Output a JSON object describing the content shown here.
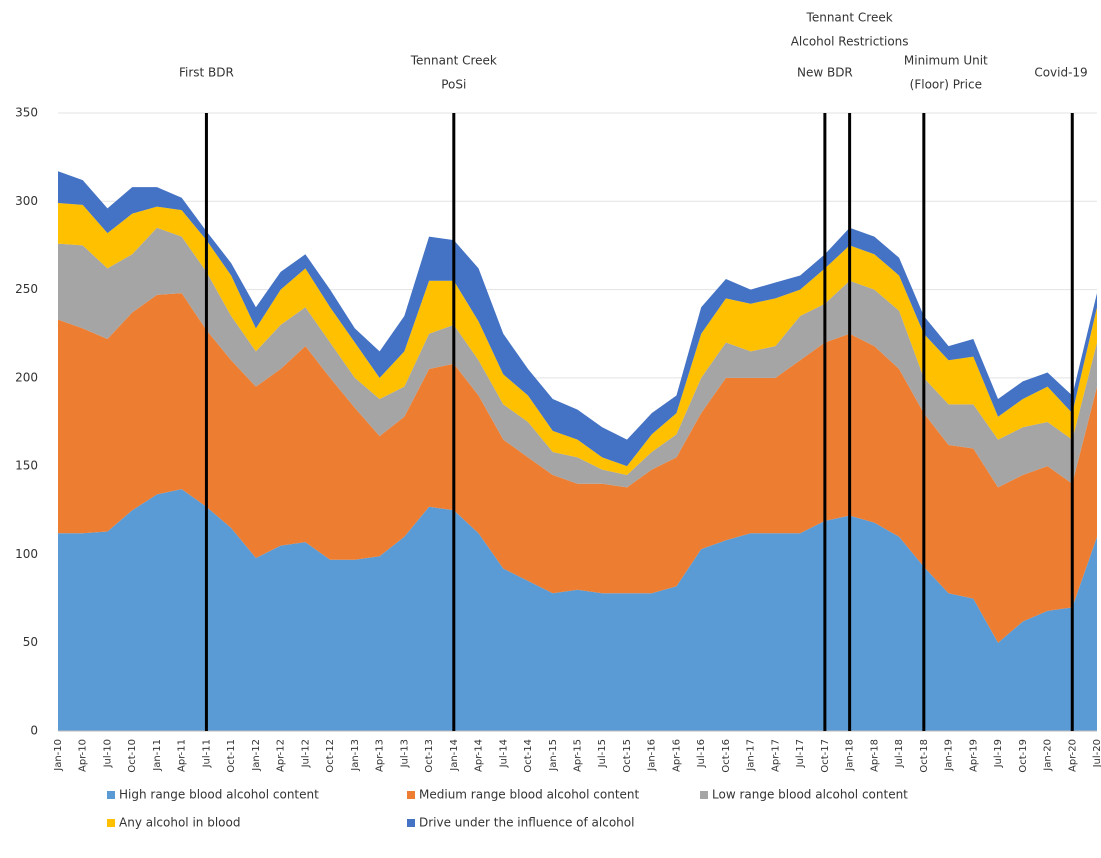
{
  "chart_data": {
    "type": "stacked-area",
    "categories": [
      "Jan-10",
      "Apr-10",
      "Jul-10",
      "Oct-10",
      "Jan-11",
      "Apr-11",
      "Jul-11",
      "Oct-11",
      "Jan-12",
      "Apr-12",
      "Jul-12",
      "Oct-12",
      "Jan-13",
      "Apr-13",
      "Jul-13",
      "Oct-13",
      "Jan-14",
      "Apr-14",
      "Jul-14",
      "Oct-14",
      "Jan-15",
      "Apr-15",
      "Jul-15",
      "Oct-15",
      "Jan-16",
      "Apr-16",
      "Jul-16",
      "Oct-16",
      "Jan-17",
      "Apr-17",
      "Jul-17",
      "Oct-17",
      "Jan-18",
      "Apr-18",
      "Jul-18",
      "Oct-18",
      "Jan-19",
      "Apr-19",
      "Jul-19",
      "Oct-19",
      "Jan-20",
      "Apr-20",
      "Jul-20"
    ],
    "series": [
      {
        "name": "High range blood alcohol content",
        "color": "#5b9bd5",
        "values": [
          112,
          112,
          113,
          125,
          134,
          137,
          127,
          115,
          98,
          105,
          107,
          97,
          97,
          99,
          110,
          127,
          125,
          112,
          92,
          85,
          78,
          80,
          78,
          78,
          78,
          82,
          103,
          108,
          112,
          112,
          112,
          119,
          122,
          118,
          110,
          93,
          78,
          75,
          50,
          62,
          68,
          70,
          110
        ]
      },
      {
        "name": "Medium range blood alcohol content",
        "color": "#ed7d31",
        "values": [
          121,
          116,
          109,
          112,
          113,
          111,
          100,
          95,
          97,
          100,
          111,
          103,
          86,
          68,
          68,
          78,
          83,
          78,
          73,
          70,
          67,
          60,
          62,
          60,
          70,
          73,
          77,
          92,
          88,
          88,
          98,
          101,
          103,
          100,
          95,
          87,
          84,
          85,
          88,
          83,
          82,
          70,
          85
        ]
      },
      {
        "name": "Low range blood alcohol content",
        "color": "#a5a5a5",
        "values": [
          43,
          47,
          40,
          33,
          38,
          32,
          33,
          25,
          20,
          25,
          22,
          20,
          17,
          21,
          17,
          20,
          22,
          20,
          20,
          20,
          13,
          15,
          8,
          7,
          10,
          13,
          20,
          20,
          15,
          18,
          25,
          22,
          30,
          32,
          33,
          20,
          23,
          25,
          27,
          27,
          25,
          25,
          25
        ]
      },
      {
        "name": "Any alcohol in blood",
        "color": "#ffc000",
        "values": [
          23,
          23,
          20,
          23,
          12,
          15,
          18,
          23,
          13,
          20,
          22,
          20,
          20,
          12,
          20,
          30,
          25,
          22,
          17,
          15,
          12,
          10,
          7,
          5,
          10,
          12,
          25,
          25,
          27,
          27,
          15,
          20,
          20,
          20,
          20,
          25,
          25,
          27,
          13,
          16,
          20,
          15,
          20
        ]
      },
      {
        "name": "Drive under the influence of alcohol",
        "color": "#4472c4",
        "values": [
          18,
          14,
          14,
          15,
          11,
          7,
          5,
          7,
          12,
          10,
          8,
          10,
          8,
          15,
          20,
          25,
          23,
          30,
          23,
          15,
          18,
          17,
          17,
          15,
          12,
          10,
          15,
          11,
          8,
          9,
          8,
          8,
          10,
          10,
          10,
          10,
          8,
          10,
          10,
          10,
          8,
          10,
          8
        ]
      }
    ],
    "annotations": [
      {
        "x": "Jul-11",
        "lines": [
          "First BDR"
        ]
      },
      {
        "x": "Jan-14",
        "lines": [
          "Tennant Creek",
          "PoSi"
        ]
      },
      {
        "x": "Oct-17",
        "lines": [
          "New BDR"
        ]
      },
      {
        "x": "Jan-18",
        "lines": [
          "Tennant Creek",
          "Alcohol Restrictions"
        ]
      },
      {
        "x": "Oct-18",
        "lines": [
          "Minimum Unit",
          "(Floor) Price"
        ]
      },
      {
        "x": "Apr-20",
        "lines": [
          "Covid-19"
        ]
      }
    ],
    "ylim": [
      0,
      350
    ],
    "yticks": [
      0,
      50,
      100,
      150,
      200,
      250,
      300,
      350
    ],
    "grid": true
  }
}
